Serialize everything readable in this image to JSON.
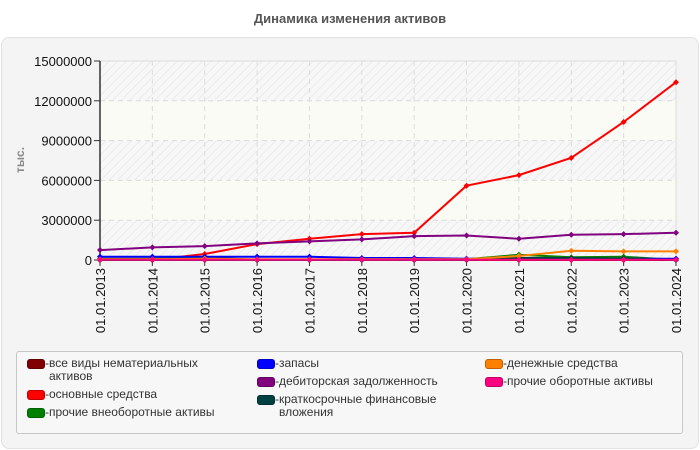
{
  "title": "Динамика изменения активов",
  "y_axis_label": "тыс.",
  "y_ticks": [
    "15000000",
    "12000000",
    "9000000",
    "6000000",
    "3000000",
    "0"
  ],
  "x_ticks": [
    "01.01.2013",
    "01.01.2014",
    "01.01.2015",
    "01.01.2016",
    "01.01.2017",
    "01.01.2018",
    "01.01.2019",
    "01.01.2020",
    "01.01.2021",
    "01.01.2022",
    "01.01.2023",
    "01.01.2024"
  ],
  "legend": {
    "columns": [
      [
        {
          "label_line1": "все виды нематериальных",
          "label_line2": "активов",
          "color": "#800000"
        },
        {
          "label_line1": "основные средства",
          "label_line2": "",
          "color": "#ff0000"
        },
        {
          "label_line1": "прочие внеоборотные активы",
          "label_line2": "",
          "color": "#008000"
        }
      ],
      [
        {
          "label_line1": "запасы",
          "label_line2": "",
          "color": "#0000ff"
        },
        {
          "label_line1": "дебиторская задолженность",
          "label_line2": "",
          "color": "#800080"
        },
        {
          "label_line1": "краткосрочные финансовые",
          "label_line2": "вложения",
          "color": "#004040"
        }
      ],
      [
        {
          "label_line1": "денежные средства",
          "label_line2": "",
          "color": "#ff8000"
        },
        {
          "label_line1": "прочие оборотные активы",
          "label_line2": "",
          "color": "#ff0080"
        }
      ]
    ]
  },
  "chart_data": {
    "type": "line",
    "title": "Динамика изменения активов",
    "xlabel": "",
    "ylabel": "тыс.",
    "ylim": [
      0,
      15000000
    ],
    "grid": true,
    "legend_position": "bottom",
    "x": [
      "01.01.2013",
      "01.01.2014",
      "01.01.2015",
      "01.01.2016",
      "01.01.2017",
      "01.01.2018",
      "01.01.2019",
      "01.01.2020",
      "01.01.2021",
      "01.01.2022",
      "01.01.2023",
      "01.01.2024"
    ],
    "series": [
      {
        "name": "все виды нематериальных активов",
        "color": "#800000",
        "values": [
          0,
          0,
          0,
          0,
          0,
          0,
          0,
          0,
          0,
          0,
          0,
          0
        ]
      },
      {
        "name": "основные средства",
        "color": "#ff0000",
        "values": [
          0,
          0,
          450000,
          1200000,
          1600000,
          1950000,
          2050000,
          5600000,
          6400000,
          7700000,
          10400000,
          13400000
        ]
      },
      {
        "name": "прочие внеоборотные активы",
        "color": "#008000",
        "values": [
          100000,
          100000,
          200000,
          0,
          0,
          0,
          0,
          50000,
          400000,
          200000,
          250000,
          0
        ]
      },
      {
        "name": "запасы",
        "color": "#0000ff",
        "values": [
          250000,
          250000,
          250000,
          250000,
          250000,
          150000,
          150000,
          100000,
          100000,
          100000,
          100000,
          100000
        ]
      },
      {
        "name": "дебиторская задолженность",
        "color": "#800080",
        "values": [
          750000,
          950000,
          1050000,
          1250000,
          1400000,
          1550000,
          1800000,
          1850000,
          1600000,
          1900000,
          1950000,
          2050000
        ]
      },
      {
        "name": "краткосрочные финансовые вложения",
        "color": "#004040",
        "values": [
          0,
          0,
          0,
          0,
          0,
          0,
          0,
          0,
          150000,
          150000,
          100000,
          0
        ]
      },
      {
        "name": "денежные средства",
        "color": "#ff8000",
        "values": [
          50000,
          50000,
          100000,
          50000,
          50000,
          50000,
          50000,
          50000,
          300000,
          700000,
          650000,
          650000
        ]
      },
      {
        "name": "прочие оборотные активы",
        "color": "#ff0080",
        "values": [
          20000,
          20000,
          20000,
          20000,
          20000,
          20000,
          20000,
          20000,
          20000,
          20000,
          20000,
          20000
        ]
      }
    ]
  }
}
